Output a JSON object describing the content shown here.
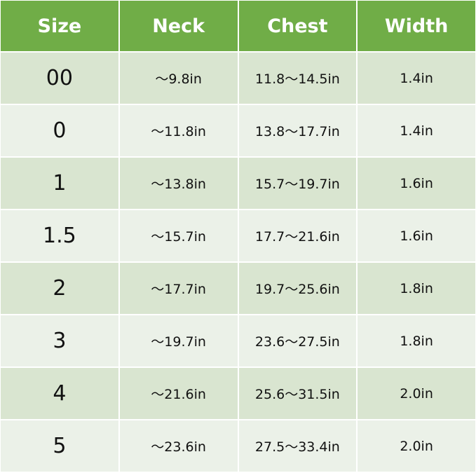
{
  "headers": [
    "Size",
    "Neck",
    "Chest",
    "Width"
  ],
  "rows": [
    {
      "size": "00",
      "neck": "～9.8in",
      "chest": "11.8～14.5in",
      "width": "1.4in"
    },
    {
      "size": "0",
      "neck": "～11.8in",
      "chest": "13.8～17.7in",
      "width": "1.4in"
    },
    {
      "size": "1",
      "neck": "～13.8in",
      "chest": "15.7～19.7in",
      "width": "1.6in"
    },
    {
      "size": "1.5",
      "neck": "～15.7in",
      "chest": "17.7～21.6in",
      "width": "1.6in"
    },
    {
      "size": "2",
      "neck": "～17.7in",
      "chest": "19.7～25.6in",
      "width": "1.8in"
    },
    {
      "size": "3",
      "neck": "～19.7in",
      "chest": "23.6～27.5in",
      "width": "1.8in"
    },
    {
      "size": "4",
      "neck": "～21.6in",
      "chest": "25.6～31.5in",
      "width": "2.0in"
    },
    {
      "size": "5",
      "neck": "～23.6in",
      "chest": "27.5～33.4in",
      "width": "2.0in"
    }
  ],
  "colors": {
    "header": "#70ad47",
    "row_odd": "#d9e5d0",
    "row_even": "#ebf1e8"
  }
}
